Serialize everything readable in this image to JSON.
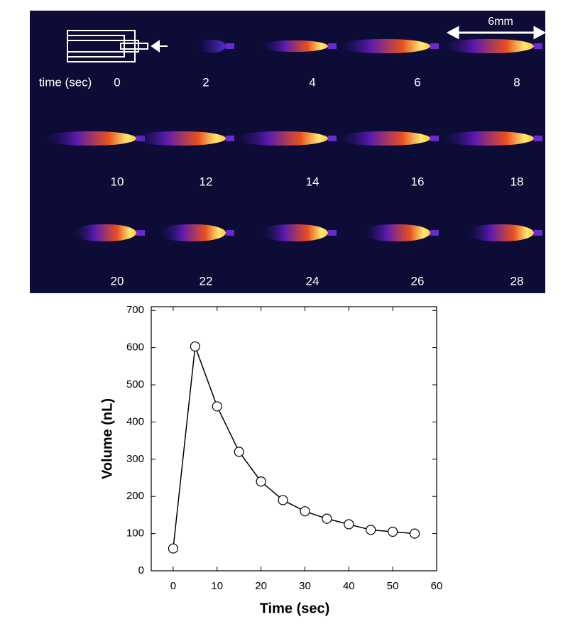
{
  "figure_panel": {
    "scale_label": "6mm",
    "time_label": "time (sec)",
    "frame_times": [
      0,
      2,
      4,
      6,
      8,
      10,
      12,
      14,
      16,
      18,
      20,
      22,
      24,
      26,
      28
    ]
  },
  "chart_data": {
    "type": "line",
    "x_label": "Time (sec)",
    "y_label": "Volume (nL)",
    "x": [
      0,
      5,
      10,
      15,
      20,
      25,
      30,
      35,
      40,
      45,
      50,
      55
    ],
    "values": [
      60,
      603,
      442,
      320,
      240,
      190,
      160,
      140,
      125,
      110,
      105,
      100
    ],
    "color": "#000000",
    "marker_fill": "#ffffff",
    "xlim": [
      -5,
      60
    ],
    "xticks": [
      0,
      10,
      20,
      30,
      40,
      50,
      60
    ],
    "ylim": [
      0,
      710
    ],
    "yticks": [
      0,
      100,
      200,
      300,
      400,
      500,
      600,
      700
    ]
  }
}
